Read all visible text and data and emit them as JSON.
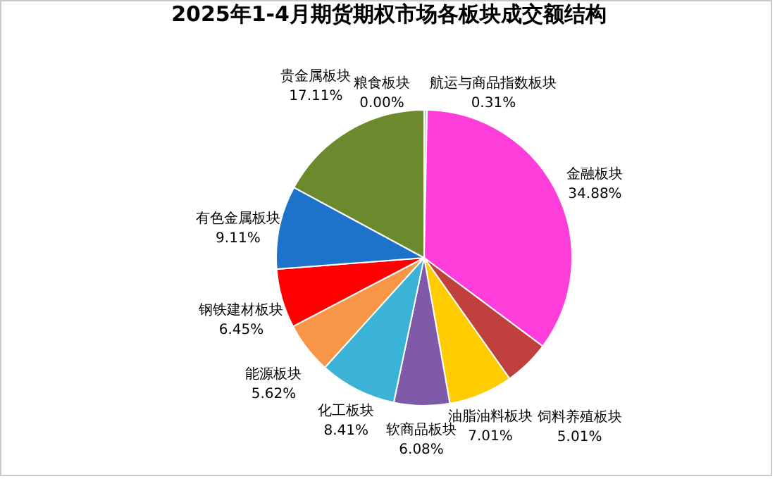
{
  "chart_data": {
    "type": "pie",
    "title": "2025年1-4月期货期权市场各板块成交额结构",
    "categories": [
      "粮食板块",
      "航运与商品指数板块",
      "金融板块",
      "饲料养殖板块",
      "油脂油料板块",
      "软商品板块",
      "化工板块",
      "能源板块",
      "钢铁建材板块",
      "有色金属板块",
      "贵金属板块"
    ],
    "values": [
      0.0,
      0.31,
      34.88,
      5.01,
      7.01,
      6.08,
      8.41,
      5.62,
      6.45,
      9.11,
      17.11
    ],
    "value_labels": [
      "0.00%",
      "0.31%",
      "34.88%",
      "5.01%",
      "7.01%",
      "6.08%",
      "8.41%",
      "5.62%",
      "6.45%",
      "9.11%",
      "17.11%"
    ],
    "colors": [
      "#4f81bd",
      "#a6d4e0",
      "#ff3ddb",
      "#c0403d",
      "#ffcc00",
      "#7f5aa8",
      "#3bb3d6",
      "#f79646",
      "#ff0000",
      "#1d72c9",
      "#6b8a2e"
    ]
  }
}
